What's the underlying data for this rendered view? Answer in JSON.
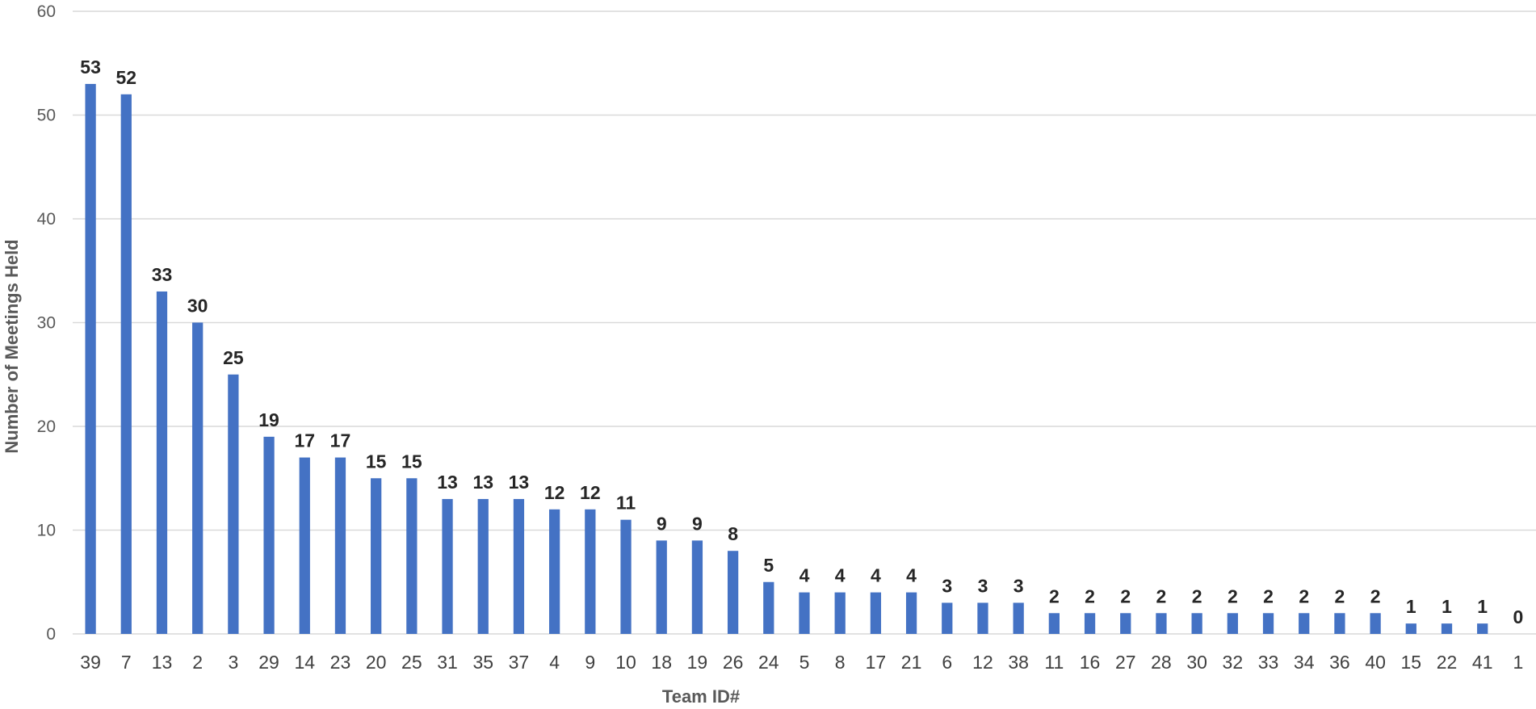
{
  "chart_data": {
    "type": "bar",
    "title": "",
    "xlabel": "Team ID#",
    "ylabel": "Number of Meetings Held",
    "ylim": [
      0,
      60
    ],
    "yticks": [
      0,
      10,
      20,
      30,
      40,
      50,
      60
    ],
    "grid": true,
    "legend": "none",
    "bar_color": "#4472c4",
    "categories": [
      "39",
      "7",
      "13",
      "2",
      "3",
      "29",
      "14",
      "23",
      "20",
      "25",
      "31",
      "35",
      "37",
      "4",
      "9",
      "10",
      "18",
      "19",
      "26",
      "24",
      "5",
      "8",
      "17",
      "21",
      "6",
      "12",
      "38",
      "11",
      "16",
      "27",
      "28",
      "30",
      "32",
      "33",
      "34",
      "36",
      "40",
      "15",
      "22",
      "41",
      "1"
    ],
    "values": [
      53,
      52,
      33,
      30,
      25,
      19,
      17,
      17,
      15,
      15,
      13,
      13,
      13,
      12,
      12,
      11,
      9,
      9,
      8,
      5,
      4,
      4,
      4,
      4,
      3,
      3,
      3,
      2,
      2,
      2,
      2,
      2,
      2,
      2,
      2,
      2,
      2,
      1,
      1,
      1,
      0
    ]
  }
}
